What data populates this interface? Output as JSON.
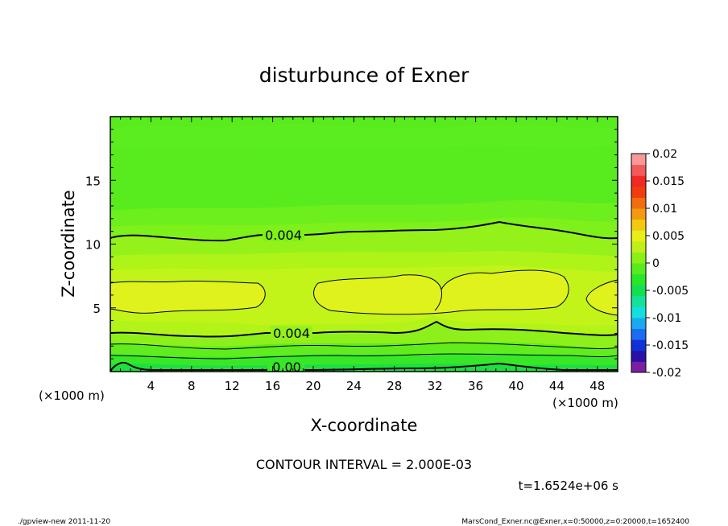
{
  "chart_data": {
    "type": "contour",
    "title": "disturbunce of Exner",
    "xlabel": "X-coordinate",
    "ylabel": "Z-coordinate",
    "x_unit": "(×1000 m)",
    "y_unit": "(×1000 m)",
    "xlim": [
      0,
      50
    ],
    "ylim": [
      0,
      20
    ],
    "xticks": [
      4,
      8,
      12,
      16,
      20,
      24,
      28,
      32,
      36,
      40,
      44,
      48
    ],
    "yticks": [
      5,
      10,
      15
    ],
    "colorbar": {
      "ticks": [
        "0.02",
        "0.015",
        "0.01",
        "0.005",
        "0",
        "-0.005",
        "-0.01",
        "-0.015",
        "-0.02"
      ],
      "range": [
        -0.02,
        0.02
      ],
      "colors": [
        "#7a1fa2",
        "#2a10a6",
        "#1030d8",
        "#1a6cf0",
        "#1aa8f0",
        "#14dede",
        "#14e29a",
        "#14de52",
        "#28e628",
        "#58ec1e",
        "#8cf018",
        "#c0f018",
        "#e8ee16",
        "#f2c812",
        "#f49a10",
        "#f26c10",
        "#f03c10",
        "#f02a22",
        "#f25a5a",
        "#f89898"
      ]
    },
    "contour_labels": [
      "0.004",
      "0.004",
      "0.00"
    ],
    "contour_interval": "CONTOUR INTERVAL = 2.000E-03",
    "time": "t=1.6524e+06 s"
  },
  "footer": {
    "left": "./gpview-new  2011-11-20",
    "right": "MarsCond_Exner.nc@Exner,x=0:50000,z=0:20000,t=1652400"
  }
}
